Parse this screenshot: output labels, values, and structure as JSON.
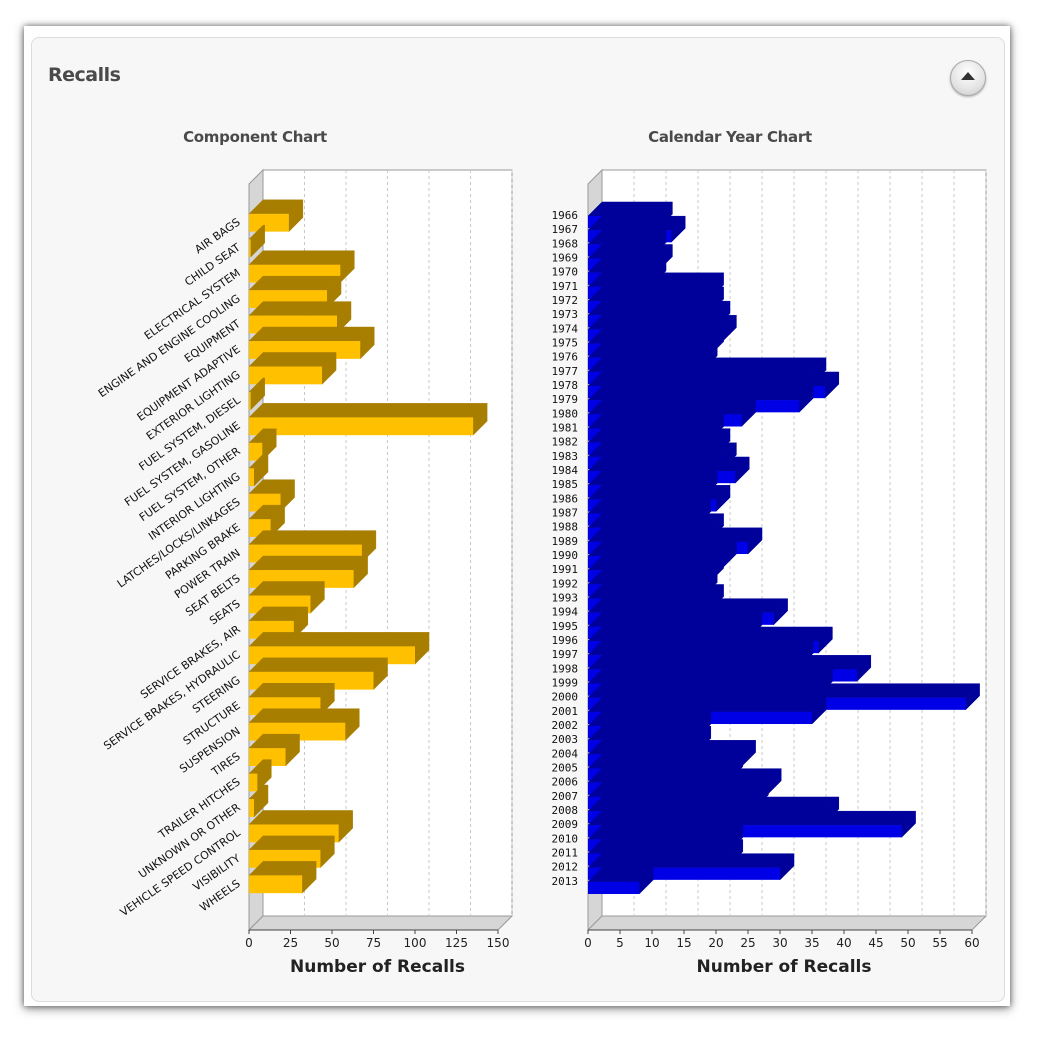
{
  "panel": {
    "title": "Recalls",
    "collapse_label": "collapse"
  },
  "colors": {
    "component_bar": "#ffc000",
    "component_bar_top": "#a87e00",
    "component_bar_side": "#a87e00",
    "year_bar": "#0000e6",
    "year_bar_top": "#00009a",
    "year_bar_side": "#00009a"
  },
  "chart_data": [
    {
      "type": "bar",
      "orientation": "horizontal",
      "title": "Component Chart",
      "xlabel": "Number of Recalls",
      "ylabel": "",
      "xlim": [
        0,
        150
      ],
      "xticks": [
        "0",
        "25",
        "50",
        "75",
        "100",
        "125",
        "150"
      ],
      "grid": true,
      "categories": [
        "AIR BAGS",
        "CHILD SEAT",
        "ELECTRICAL SYSTEM",
        "ENGINE AND ENGINE COOLING",
        "EQUIPMENT",
        "EQUIPMENT ADAPTIVE",
        "EXTERIOR LIGHTING",
        "FUEL SYSTEM, DIESEL",
        "FUEL SYSTEM, GASOLINE",
        "FUEL SYSTEM, OTHER",
        "INTERIOR LIGHTING",
        "LATCHES/LOCKS/LINKAGES",
        "PARKING BRAKE",
        "POWER TRAIN",
        "SEAT BELTS",
        "SEATS",
        "SERVICE BRAKES, AIR",
        "SERVICE BRAKES, HYDRAULIC",
        "STEERING",
        "STRUCTURE",
        "SUSPENSION",
        "TIRES",
        "TRAILER HITCHES",
        "UNKNOWN OR OTHER",
        "VEHICLE SPEED CONTROL",
        "VISIBILITY",
        "WHEELS"
      ],
      "values": [
        24,
        1,
        55,
        47,
        53,
        67,
        44,
        1,
        135,
        8,
        3,
        19,
        13,
        68,
        63,
        37,
        27,
        100,
        75,
        43,
        58,
        22,
        5,
        3,
        54,
        43,
        32
      ]
    },
    {
      "type": "bar",
      "orientation": "horizontal",
      "title": "Calendar Year Chart",
      "xlabel": "Number of Recalls",
      "ylabel": "",
      "xlim": [
        0,
        60
      ],
      "xticks": [
        "0",
        "5",
        "10",
        "15",
        "20",
        "25",
        "30",
        "35",
        "40",
        "45",
        "50",
        "55",
        "60"
      ],
      "grid": true,
      "categories": [
        "1966",
        "1967",
        "1968",
        "1969",
        "1970",
        "1971",
        "1972",
        "1973",
        "1974",
        "1975",
        "1976",
        "1977",
        "1978",
        "1979",
        "1980",
        "1981",
        "1982",
        "1983",
        "1984",
        "1985",
        "1986",
        "1987",
        "1988",
        "1989",
        "1990",
        "1991",
        "1992",
        "1993",
        "1994",
        "1995",
        "1996",
        "1997",
        "1998",
        "1999",
        "2000",
        "2001",
        "2002",
        "2003",
        "2004",
        "2005",
        "2006",
        "2007",
        "2008",
        "2009",
        "2010",
        "2011",
        "2012",
        "2013"
      ],
      "values": [
        11,
        13,
        10,
        11,
        10,
        19,
        19,
        20,
        21,
        19,
        18,
        35,
        37,
        33,
        24,
        19,
        20,
        21,
        23,
        18,
        20,
        17,
        19,
        25,
        21,
        19,
        18,
        19,
        29,
        25,
        36,
        33,
        42,
        36,
        59,
        35,
        17,
        17,
        24,
        22,
        28,
        26,
        37,
        49,
        22,
        22,
        30,
        8
      ]
    }
  ]
}
